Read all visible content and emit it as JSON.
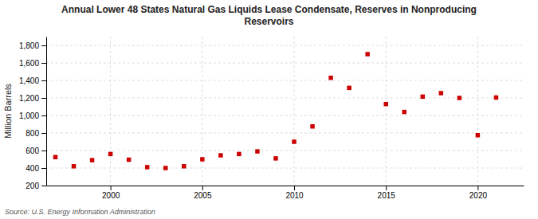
{
  "chart_data": {
    "type": "scatter",
    "title": "Annual Lower 48 States Natural Gas Liquids Lease Condensate, Reserves in Nonproducing\nReservoirs",
    "ylabel": "Million Barrels",
    "annotations": [
      "Source: U.S. Energy Information Administration"
    ],
    "x": [
      1997,
      1998,
      1999,
      2000,
      2001,
      2002,
      2003,
      2004,
      2005,
      2006,
      2007,
      2008,
      2009,
      2010,
      2011,
      2012,
      2013,
      2014,
      2015,
      2016,
      2017,
      2018,
      2019,
      2020,
      2021
    ],
    "values": [
      525,
      420,
      490,
      560,
      495,
      410,
      400,
      420,
      500,
      545,
      560,
      590,
      510,
      700,
      875,
      1430,
      1315,
      1700,
      1130,
      1040,
      1215,
      1255,
      1200,
      775,
      1205
    ],
    "color": "#cc0000",
    "marker": "square",
    "grid": true,
    "xlim": [
      1996.5,
      2022.5
    ],
    "xticks": [
      2000,
      2005,
      2010,
      2015,
      2020
    ],
    "ylim": [
      200,
      1900
    ],
    "yticks": [
      200,
      400,
      600,
      800,
      {
        "value": 1000,
        "label": "1,000"
      },
      {
        "value": 1200,
        "label": "1,200"
      },
      {
        "value": 1400,
        "label": "1,400"
      },
      {
        "value": 1600,
        "label": "1,600"
      },
      {
        "value": 1800,
        "label": "1,800"
      }
    ]
  }
}
